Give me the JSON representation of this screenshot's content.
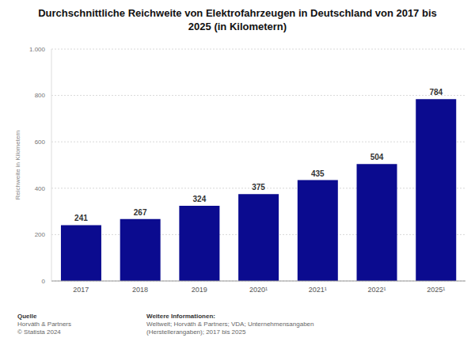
{
  "chart_data": {
    "type": "bar",
    "title": "Durchschnittliche Reichweite von Elektrofahrzeugen in Deutschland von 2017 bis 2025 (in Kilometern)",
    "y_label": "Reichweite in Kilometern",
    "categories": [
      "2017",
      "2018",
      "2019",
      "2020¹",
      "2021¹",
      "2022¹",
      "2025¹"
    ],
    "values": [
      241,
      267,
      324,
      375,
      435,
      504,
      784
    ],
    "color": "#0b0b8f",
    "ylim": [
      0,
      1000
    ],
    "yticks": [
      0,
      200,
      400,
      600,
      800,
      {
        "value": 1000,
        "label": "1.000"
      }
    ],
    "grid": true,
    "data_labels": true,
    "notes": {
      "source_heading": "Quelle",
      "source_lines": [
        "Horváth & Partners",
        "© Statista 2024"
      ],
      "info_heading": "Weitere Informationen:",
      "info_text": "Weltweit; Horváth & Partners; VDA; Unternehmensangaben (Herstellerangaben); 2017 bis 2025"
    }
  }
}
